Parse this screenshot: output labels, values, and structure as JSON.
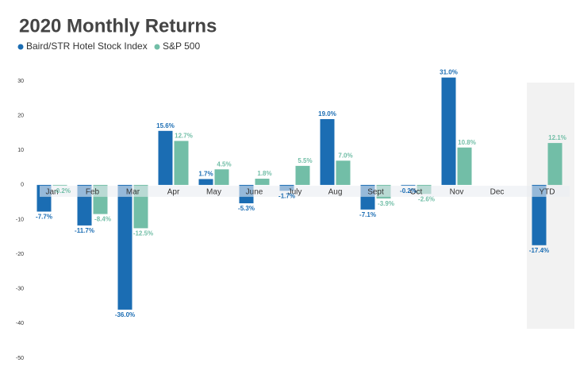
{
  "chart_data": {
    "type": "bar",
    "title": "2020 Monthly Returns",
    "categories": [
      "Jan",
      "Feb",
      "Mar",
      "Apr",
      "May",
      "June",
      "July",
      "Aug",
      "Sept",
      "Oct",
      "Nov",
      "Dec",
      "YTD"
    ],
    "series": [
      {
        "name": "Baird/STR Hotel Stock Index",
        "color": "#1b6db3",
        "values": [
          -7.7,
          -11.7,
          -36.0,
          15.6,
          1.7,
          -5.3,
          -1.7,
          19.0,
          -7.1,
          -0.2,
          31.0,
          null,
          -17.4
        ],
        "value_labels": [
          "-7.7%",
          "-11.7%",
          "-36.0%",
          "15.6%",
          "1.7%",
          "-5.3%",
          "-1.7%",
          "19.0%",
          "-7.1%",
          "-0.2%",
          "31.0%",
          null,
          "-17.4%"
        ]
      },
      {
        "name": "S&P 500",
        "color": "#72bea7",
        "values": [
          -0.2,
          -8.4,
          -12.5,
          12.7,
          4.5,
          1.8,
          5.5,
          7.0,
          -3.9,
          -2.6,
          10.8,
          null,
          12.1
        ],
        "value_labels": [
          "-0.2%",
          "-8.4%",
          "-12.5%",
          "12.7%",
          "4.5%",
          "1.8%",
          "5.5%",
          "7.0%",
          "-3.9%",
          "-2.6%",
          "10.8%",
          null,
          "12.1%"
        ]
      }
    ],
    "ylim": [
      -50,
      30
    ],
    "yticks": [
      30,
      20,
      10,
      0,
      -10,
      -20,
      -30,
      -40,
      -50
    ],
    "grid": false
  }
}
